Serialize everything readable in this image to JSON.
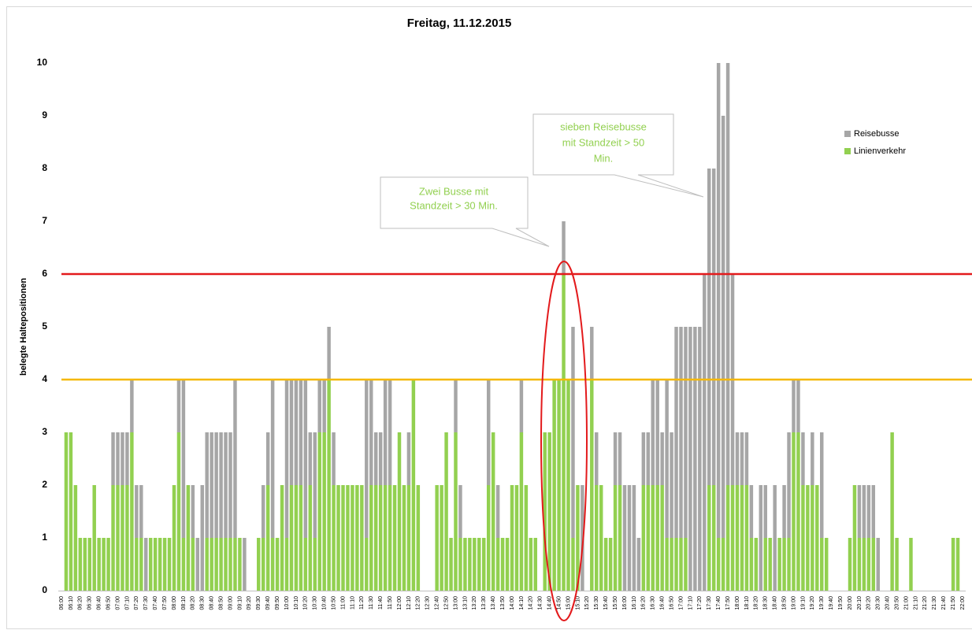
{
  "chart_data": {
    "type": "stacked_bar",
    "title": "Freitag, 11.12.2015",
    "y_label": "belegte Haltepositionen",
    "categories": [
      "06:00",
      null,
      "06:10",
      null,
      "06:20",
      null,
      "06:30",
      null,
      "06:40",
      null,
      "06:50",
      null,
      "07:00",
      null,
      "07:10",
      null,
      "07:20",
      null,
      "07:30",
      null,
      "07:40",
      null,
      "07:50",
      null,
      "08:00",
      null,
      "08:10",
      null,
      "08:20",
      null,
      "08:30",
      null,
      "08:40",
      null,
      "08:50",
      null,
      "09:00",
      null,
      "09:10",
      null,
      "09:20",
      null,
      "09:30",
      null,
      "09:40",
      null,
      "09:50",
      null,
      "10:00",
      null,
      "10:10",
      null,
      "10:20",
      null,
      "10:30",
      null,
      "10:40",
      null,
      "10:50",
      null,
      "11:00",
      null,
      "11:10",
      null,
      "11:20",
      null,
      "11:30",
      null,
      "11:40",
      null,
      "11:50",
      null,
      "12:00",
      null,
      "12:10",
      null,
      "12:20",
      null,
      "12:30",
      null,
      "12:40",
      null,
      "12:50",
      null,
      "13:00",
      null,
      "13:10",
      null,
      "13:20",
      null,
      "13:30",
      null,
      "13:40",
      null,
      "13:50",
      null,
      "14:00",
      null,
      "14:10",
      null,
      "14:20",
      null,
      "14:30",
      null,
      "14:40",
      null,
      "14:50",
      null,
      "15:00",
      null,
      "15:10",
      null,
      "15:20",
      null,
      "15:30",
      null,
      "15:40",
      null,
      "15:50",
      null,
      "16:00",
      null,
      "16:10",
      null,
      "16:20",
      null,
      "16:30",
      null,
      "16:40",
      null,
      "16:50",
      null,
      "17:00",
      null,
      "17:10",
      null,
      "17:20",
      null,
      "17:30",
      null,
      "17:40",
      null,
      "17:50",
      null,
      "18:00",
      null,
      "18:10",
      null,
      "18:20",
      null,
      "18:30",
      null,
      "18:40",
      null,
      "18:50",
      null,
      "19:00",
      null,
      "19:10",
      null,
      "19:20",
      null,
      "19:30",
      null,
      "19:40",
      null,
      "19:50",
      null,
      "20:00",
      null,
      "20:10",
      null,
      "20:20",
      null,
      "20:30",
      null,
      "20:40",
      null,
      "20:50",
      null,
      "21:00",
      null,
      "21:10",
      null,
      "21:20",
      null,
      "21:30",
      null,
      "21:40",
      null,
      "21:50",
      null,
      "22:00"
    ],
    "series": [
      {
        "name": "Linienverkehr",
        "color": "#92d050",
        "values": [
          0,
          3,
          3,
          2,
          1,
          1,
          1,
          2,
          1,
          1,
          1,
          2,
          2,
          2,
          2,
          3,
          1,
          1,
          0,
          1,
          1,
          1,
          1,
          1,
          2,
          3,
          1,
          2,
          1,
          0,
          0,
          1,
          1,
          1,
          1,
          1,
          1,
          1,
          1,
          0,
          0,
          0,
          1,
          1,
          2,
          1,
          1,
          2,
          1,
          2,
          2,
          2,
          1,
          2,
          1,
          3,
          3,
          4,
          2,
          2,
          2,
          2,
          2,
          2,
          2,
          1,
          2,
          2,
          2,
          2,
          2,
          2,
          3,
          2,
          2,
          4,
          2,
          0,
          0,
          0,
          2,
          2,
          3,
          1,
          3,
          1,
          1,
          1,
          1,
          1,
          1,
          2,
          3,
          1,
          1,
          1,
          2,
          2,
          3,
          2,
          1,
          1,
          0,
          3,
          3,
          4,
          4,
          6,
          4,
          1,
          2,
          0,
          0,
          4,
          2,
          2,
          1,
          1,
          2,
          2,
          0,
          0,
          0,
          0,
          2,
          2,
          2,
          2,
          2,
          1,
          1,
          1,
          1,
          1,
          0,
          0,
          0,
          0,
          2,
          2,
          1,
          1,
          2,
          2,
          2,
          2,
          2,
          1,
          1,
          0,
          1,
          1,
          0,
          1,
          1,
          1,
          3,
          3,
          2,
          2,
          2,
          2,
          1,
          1,
          0,
          0,
          0,
          0,
          1,
          2,
          1,
          1,
          1,
          1,
          0,
          0,
          0,
          3,
          1,
          0,
          0,
          1,
          0,
          0,
          0,
          0,
          0,
          0,
          0,
          0,
          1,
          1,
          0
        ]
      },
      {
        "name": "Reisebusse",
        "color": "#a6a6a6",
        "values": [
          0,
          0,
          0,
          0,
          0,
          0,
          0,
          0,
          0,
          0,
          0,
          1,
          1,
          1,
          1,
          1,
          1,
          1,
          1,
          0,
          0,
          0,
          0,
          0,
          0,
          1,
          3,
          0,
          1,
          1,
          2,
          2,
          2,
          2,
          2,
          2,
          2,
          3,
          0,
          1,
          0,
          0,
          0,
          1,
          1,
          3,
          0,
          0,
          3,
          2,
          2,
          2,
          3,
          1,
          2,
          1,
          1,
          1,
          1,
          0,
          0,
          0,
          0,
          0,
          0,
          3,
          2,
          1,
          1,
          2,
          2,
          0,
          0,
          0,
          1,
          0,
          0,
          0,
          0,
          0,
          0,
          0,
          0,
          0,
          1,
          1,
          0,
          0,
          0,
          0,
          0,
          2,
          0,
          1,
          0,
          0,
          0,
          0,
          1,
          0,
          0,
          0,
          0,
          0,
          0,
          0,
          0,
          1,
          0,
          4,
          0,
          2,
          0,
          1,
          1,
          0,
          0,
          0,
          1,
          1,
          2,
          2,
          2,
          1,
          1,
          1,
          2,
          2,
          1,
          3,
          2,
          4,
          4,
          4,
          5,
          5,
          5,
          6,
          6,
          6,
          9,
          8,
          8,
          4,
          1,
          1,
          1,
          1,
          0,
          2,
          1,
          0,
          2,
          0,
          1,
          2,
          1,
          1,
          1,
          0,
          1,
          0,
          2,
          0,
          0,
          0,
          0,
          0,
          0,
          0,
          1,
          1,
          1,
          1,
          1,
          0,
          0,
          0,
          0,
          0,
          0,
          0,
          0,
          0,
          0,
          0,
          0,
          0,
          0,
          0,
          0,
          0,
          0
        ]
      }
    ],
    "ylim": [
      0,
      10
    ],
    "yticks": [
      0,
      1,
      2,
      3,
      4,
      5,
      6,
      7,
      8,
      9,
      10
    ],
    "reference_lines": [
      {
        "value": 6,
        "color": "#e31a1c"
      },
      {
        "value": 4,
        "color": "#f5b800"
      }
    ],
    "annotations": [
      [
        "Zwei Busse mit",
        "Standzeit > 30 Min."
      ],
      [
        "sieben Reisebusse",
        "mit Standzeit > 50",
        "Min."
      ]
    ],
    "legend": "upper right"
  }
}
